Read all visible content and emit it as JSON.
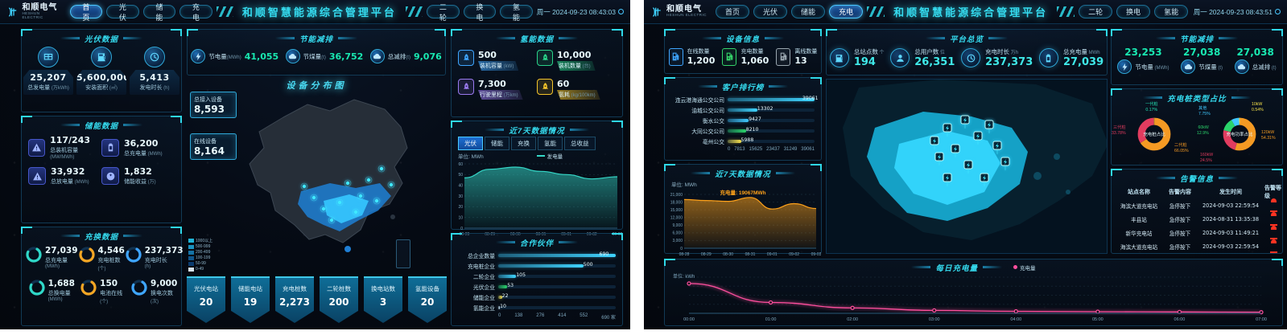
{
  "colors": {
    "accent": "#35dcf0",
    "green_value": "#19e8b1",
    "orange": "#ffa21a",
    "pink": "#ff4f9e",
    "alarm_red": "#ff3322"
  },
  "left": {
    "header": {
      "logo": "和顺电气",
      "logo_sub": "HESHUN ELECTRIC",
      "nav": [
        {
          "label": "首页",
          "active": true
        },
        {
          "label": "光伏",
          "active": false
        },
        {
          "label": "储能",
          "active": false
        },
        {
          "label": "充电",
          "active": false
        }
      ],
      "title": "和顺智慧能源综合管理平台",
      "nav_right": [
        {
          "label": "二轮",
          "active": false
        },
        {
          "label": "换电",
          "active": false
        },
        {
          "label": "氢能",
          "active": false
        }
      ],
      "datetime": "周一 2024-09-23 08:43:03"
    },
    "pv": {
      "title": "光伏数据",
      "stats": [
        {
          "value": "25,207",
          "label": "总发电量",
          "unit": "万kWh",
          "icon": "panel-icon"
        },
        {
          "value": "5,600,000",
          "label": "安装面积",
          "unit": "㎡",
          "icon": "area-icon"
        },
        {
          "value": "5,413",
          "label": "发电时长",
          "unit": "h",
          "icon": "clock-icon"
        }
      ]
    },
    "storage": {
      "title": "储能数据",
      "stats": [
        {
          "value": "117/243",
          "label": "总装机容量",
          "unit": "MW/MWh",
          "icon": "capacity-icon"
        },
        {
          "value": "36,200",
          "label": "总充电量",
          "unit": "MWh",
          "icon": "battery-icon"
        },
        {
          "value": "33,932",
          "label": "总放电量",
          "unit": "MWh",
          "icon": "discharge-icon"
        },
        {
          "value": "1,832",
          "label": "储能收益",
          "unit": "万",
          "icon": "profit-icon"
        }
      ]
    },
    "swap": {
      "title": "充换数据",
      "stats": [
        {
          "value": "27,039",
          "label": "总充电量",
          "unit": "MWh",
          "color": "#2fd8c8"
        },
        {
          "value": "4,546",
          "label": "充电桩数",
          "unit": "个",
          "color": "#f5a623"
        },
        {
          "value": "237,373",
          "label": "充电时长",
          "unit": "h",
          "color": "#3fa6ff"
        },
        {
          "value": "1,688",
          "label": "总换电量",
          "unit": "MWh",
          "color": "#2fd8c8"
        },
        {
          "value": "150",
          "label": "电池在线",
          "unit": "个",
          "color": "#f5a623"
        },
        {
          "value": "9,000",
          "label": "换电次数",
          "unit": "次",
          "color": "#3fa6ff"
        }
      ]
    },
    "saving": {
      "title": "节能减排",
      "stats": [
        {
          "label": "节电量",
          "unit": "MWh",
          "value": "41,055"
        },
        {
          "label": "节煤量",
          "unit": "t",
          "value": "36,752"
        },
        {
          "label": "总减排",
          "unit": "t",
          "value": "9,076"
        }
      ]
    },
    "map": {
      "title": "设备分布图",
      "total_label": "总接入设备",
      "total_value": "8,593",
      "online_label": "在线设备",
      "online_value": "8,164",
      "legend": [
        {
          "label": "1000以上",
          "color": "#1fb4d8"
        },
        {
          "label": "500-999",
          "color": "#1a93c0"
        },
        {
          "label": "200-499",
          "color": "#1573a6"
        },
        {
          "label": "100-199",
          "color": "#0f568c"
        },
        {
          "label": "50-99",
          "color": "#0a3a6e"
        },
        {
          "label": "0-49",
          "color": "#d8e4ec"
        }
      ]
    },
    "stations": [
      {
        "label": "光伏电站",
        "value": "20"
      },
      {
        "label": "储能电站",
        "value": "19"
      },
      {
        "label": "充电桩数",
        "value": "2,273"
      },
      {
        "label": "二轮桩数",
        "value": "200"
      },
      {
        "label": "换电站数",
        "value": "3"
      },
      {
        "label": "氢能设备",
        "value": "20"
      }
    ],
    "hydrogen": {
      "title": "氢能数据",
      "stats": [
        {
          "value": "500",
          "label": "装机容量",
          "unit": "kW",
          "color": "#3fa6ff"
        },
        {
          "value": "10,000",
          "label": "装机数量",
          "unit": "台",
          "color": "#2ad48a"
        },
        {
          "value": "7,300",
          "label": "行驶里程",
          "unit": "万km",
          "color": "#9a7af0"
        },
        {
          "value": "60",
          "label": "氢耗",
          "unit": "kg/100km",
          "color": "#f5c52a"
        }
      ]
    },
    "week": {
      "title": "近7天数据情况",
      "tabs": [
        {
          "label": "光伏",
          "active": true
        },
        {
          "label": "储能",
          "active": false
        },
        {
          "label": "充换",
          "active": false
        },
        {
          "label": "氢能",
          "active": false
        },
        {
          "label": "总收益",
          "active": false
        }
      ],
      "unit": "单位: MWh",
      "legend": "发电量"
    },
    "partners": {
      "title": "合作伙伴",
      "axis_unit": "家"
    }
  },
  "right": {
    "header": {
      "logo": "和顺电气",
      "logo_sub": "HESHUN ELECTRIC",
      "nav": [
        {
          "label": "首页",
          "active": false
        },
        {
          "label": "光伏",
          "active": false
        },
        {
          "label": "储能",
          "active": false
        },
        {
          "label": "充电",
          "active": true
        }
      ],
      "title": "和顺智慧能源综合管理平台",
      "nav_right": [
        {
          "label": "二轮",
          "active": false
        },
        {
          "label": "换电",
          "active": false
        },
        {
          "label": "氢能",
          "active": false
        }
      ],
      "datetime": "周一 2024-09-23 08:43:51"
    },
    "device": {
      "title": "设备信息",
      "stats": [
        {
          "label": "在线数量",
          "value": "1,200",
          "color": "#3fa6ff"
        },
        {
          "label": "充电数量",
          "value": "1,060",
          "color": "#35d46a"
        },
        {
          "label": "离线数量",
          "value": "13",
          "color": "#9aa7b0"
        }
      ]
    },
    "customers": {
      "title": "客户排行榜"
    },
    "week": {
      "title": "近7天数据情况",
      "unit": "单位: MWh",
      "note": "充电量: 19067MWh"
    },
    "overview": {
      "title": "平台总览",
      "stats": [
        {
          "label": "总站点数",
          "unit": "个",
          "value": "194",
          "icon": "station-icon"
        },
        {
          "label": "总用户数",
          "unit": "位",
          "value": "26,351",
          "icon": "user-icon"
        },
        {
          "label": "充电时长",
          "unit": "万h",
          "value": "237,373",
          "icon": "clock-icon"
        },
        {
          "label": "总充电量",
          "unit": "MWh",
          "value": "27,039",
          "icon": "battery-icon"
        }
      ]
    },
    "saving": {
      "title": "节能减排",
      "stats": [
        {
          "value": "23,253",
          "label": "节电量",
          "unit": "MWh"
        },
        {
          "value": "27,038",
          "label": "节煤量",
          "unit": "t"
        },
        {
          "value": "27,038",
          "label": "总减排",
          "unit": "t"
        }
      ]
    },
    "piles": {
      "title": "充电桩类型占比",
      "center1": "充电桩占比",
      "center2": "充电功率占比"
    },
    "alarms": {
      "title": "告警信息",
      "headers": [
        "站点名称",
        "告警内容",
        "发生时间",
        "告警等级"
      ],
      "rows": [
        {
          "station": "海滨大道充电站",
          "content": "急停按下",
          "time": "2024-09-03 22:59:54"
        },
        {
          "station": "丰县站",
          "content": "急停按下",
          "time": "2024-08-31 13:35:38"
        },
        {
          "station": "新华充电站",
          "content": "急停按下",
          "time": "2024-09-03 11:49:21"
        },
        {
          "station": "海滨大道充电站",
          "content": "急停按下",
          "time": "2024-09-03 22:59:54"
        }
      ]
    },
    "daily": {
      "title": "每日充电量",
      "legend": "充电量",
      "unit": "单位: kWh"
    }
  },
  "chart_data": [
    {
      "type": "area",
      "title": "近7天数据情况-光伏发电量",
      "legend": "发电量",
      "unit": "MWh",
      "x": [
        "08-28",
        "08-29",
        "08-30",
        "08-31",
        "09-01",
        "09-02",
        "09-03"
      ],
      "values": [
        47,
        55,
        57,
        53,
        50,
        46,
        48
      ],
      "ylim": [
        0,
        60
      ],
      "yticks": [
        0,
        10,
        20,
        30,
        40,
        50,
        60
      ],
      "color": "#35d8c8"
    },
    {
      "type": "bar",
      "title": "合作伙伴",
      "orientation": "horizontal",
      "categories": [
        "总企业数量",
        "充电桩企业",
        "二轮企业",
        "光伏企业",
        "储能企业",
        "氢能企业"
      ],
      "values": [
        690,
        500,
        105,
        53,
        22,
        10
      ],
      "xticks": [
        0,
        138,
        276,
        414,
        552,
        690
      ],
      "unit": "家",
      "colors": [
        "#3fd4ff",
        "#3fd4ff",
        "#3fd4ff",
        "#2ad46a",
        "#f5e04a",
        "#cfe8f5"
      ]
    },
    {
      "type": "bar",
      "title": "客户排行榜",
      "orientation": "horizontal",
      "categories": [
        "连云港海通公交公司",
        "油城公交公司",
        "衡水公交",
        "大同公交公司",
        "亳州公交"
      ],
      "values": [
        39061,
        13302,
        9427,
        8210,
        5988
      ],
      "xticks": [
        0,
        7813,
        15625,
        23437,
        31249,
        39061
      ],
      "colors": [
        "#3fd4ff",
        "#3fd4ff",
        "#3fc8ff",
        "#2ad46a",
        "#f5e04a"
      ]
    },
    {
      "type": "area",
      "title": "近7天数据情况-充电量",
      "legend": "充电量",
      "unit": "MWh",
      "x": [
        "08-28",
        "08-29",
        "08-30",
        "08-31",
        "09-01",
        "09-02",
        "09-03"
      ],
      "values": [
        19000,
        18600,
        18300,
        19800,
        15300,
        17400,
        15500
      ],
      "ylim": [
        0,
        21000
      ],
      "yticks": [
        0,
        3000,
        6000,
        9000,
        12000,
        15000,
        18000,
        21000
      ],
      "color": "#ffa21a"
    },
    {
      "type": "pie",
      "title": "充电桩占比",
      "slices": [
        {
          "label": "一代桩",
          "value": 0.17,
          "color": "#25e2b5"
        },
        {
          "label": "二代桩",
          "value": 66.05,
          "color": "#f59a23"
        },
        {
          "label": "三代桩",
          "value": 33.78,
          "color": "#e23c5f"
        }
      ]
    },
    {
      "type": "pie",
      "title": "充电功率占比",
      "slices": [
        {
          "label": "10kW",
          "value": 0.54,
          "color": "#f5e04a"
        },
        {
          "label": "120kW",
          "value": 54.31,
          "color": "#f59a23"
        },
        {
          "label": "160kW",
          "value": 24.5,
          "color": "#e23c5f"
        },
        {
          "label": "60kW",
          "value": 12.9,
          "color": "#2ad46a"
        },
        {
          "label": "其他",
          "value": 7.75,
          "color": "#3fc8ff"
        }
      ]
    },
    {
      "type": "line",
      "title": "每日充电量",
      "legend": "充电量",
      "unit": "kWh",
      "x": [
        "00:00",
        "01:00",
        "02:00",
        "03:00",
        "04:00",
        "05:00",
        "06:00",
        "07:00"
      ],
      "values": [
        330,
        120,
        60,
        32,
        22,
        18,
        15,
        12
      ],
      "ylim": [
        0,
        400
      ],
      "color": "#ff4f9e"
    }
  ]
}
